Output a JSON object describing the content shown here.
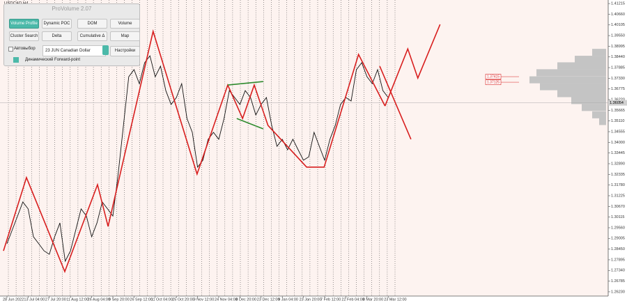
{
  "window": {
    "symbol": "USDCAD,H4",
    "panel": {
      "title": "ProVolume 2.07",
      "buttons": [
        "Volume Profile",
        "Dynamic POC",
        "DOM",
        "Volume",
        "Cluster Search",
        "Delta",
        "Cumulative Δ",
        "Map"
      ],
      "auto_select": "Автовыбор",
      "instrument": "23 JUN Canadian Dollar",
      "settings": "Настройки",
      "forward_point": "Динамический Forward-point"
    }
  },
  "chart_data": {
    "type": "line",
    "categories": [
      "28 Jun 2022",
      null,
      null,
      null,
      "13 Jul 04:00",
      null,
      null,
      null,
      "27 Jul 20:00",
      null,
      null,
      null,
      "11 Aug 12:00",
      null,
      null,
      null,
      "26 Aug 04:00",
      null,
      null,
      null,
      "9 Sep 20:00",
      null,
      null,
      null,
      "26 Sep 12:00",
      null,
      null,
      null,
      "11 Oct 04:00",
      null,
      null,
      null,
      "25 Oct 20:00",
      null,
      null,
      null,
      "9 Nov 12:00",
      null,
      null,
      null,
      "24 Nov 04:00",
      null,
      null,
      null,
      "8 Dec 20:00",
      null,
      null,
      null,
      "23 Dec 12:00",
      null,
      null,
      null,
      "9 Jan 04:00",
      null,
      null,
      null,
      "23 Jan 20:00",
      null,
      null,
      null,
      "7 Feb 12:00",
      null,
      null,
      null,
      "22 Feb 04:00",
      null,
      null,
      null,
      "8 Mar 20:00",
      null,
      null,
      null,
      "23 Mar 12:00"
    ],
    "values": [
      1.2873,
      1.2945,
      1.3017,
      1.309,
      1.3054,
      1.2909,
      1.2873,
      1.2836,
      1.2818,
      1.2909,
      1.2981,
      1.2782,
      1.2836,
      1.2945,
      1.3054,
      1.3017,
      1.2909,
      1.2981,
      1.309,
      1.3054,
      1.3017,
      1.3235,
      1.3488,
      1.3741,
      1.3778,
      1.3705,
      1.3814,
      1.385,
      1.3741,
      1.3796,
      1.3669,
      1.3597,
      1.3633,
      1.3705,
      1.3524,
      1.3452,
      1.3271,
      1.3307,
      1.3416,
      1.3452,
      1.3416,
      1.3524,
      1.3669,
      1.3633,
      1.3597,
      1.3669,
      1.3633,
      1.3542,
      1.3597,
      1.3633,
      1.3488,
      1.3379,
      1.3416,
      1.3361,
      1.3416,
      1.3361,
      1.3307,
      1.3325,
      1.3452,
      1.3379,
      1.3307,
      1.3416,
      1.3488,
      1.3597,
      1.3633,
      1.3615,
      1.3778,
      1.3814,
      1.3741,
      1.3705,
      1.3778,
      1.3669,
      1.3633
    ],
    "color": "#111111",
    "series": [
      {
        "color": "#d81e1e",
        "x": [
          -0.66,
          3.68,
          10.92,
          17.1,
          19.1,
          27.6,
          35.9,
          41.7,
          44.5,
          46.7,
          49.3,
          56.6,
          59.9,
          66.4,
          71.4
        ],
        "values": [
          1.2836,
          1.3217,
          1.2728,
          1.318,
          1.2963,
          1.3977,
          1.3235,
          1.3698,
          1.3524,
          1.3698,
          1.3488,
          1.3271,
          1.3271,
          1.3857,
          1.3589
        ]
      },
      {
        "color": "#d81e1e",
        "x": [
          71.4,
          75.7,
          77.6,
          81.8
        ],
        "values": [
          1.3589,
          1.3886,
          1.3734,
          1.4013
        ]
      },
      {
        "color": "#d81e1e",
        "x": [
          70.4,
          76.3
        ],
        "values": [
          1.3796,
          1.3416
        ]
      },
      {
        "color": "#2e8b2e",
        "x": [
          41.7,
          48.4
        ],
        "values": [
          1.3698,
          1.3716
        ]
      },
      {
        "color": "#2e8b2e",
        "x": [
          43.4,
          48.4
        ],
        "values": [
          1.3524,
          1.347
        ]
      }
    ],
    "ylim": [
      1.2601,
      1.414
    ],
    "yticks": [
      1.41215,
      {
        "value": 1.4066,
        "label": "1.40660"
      },
      1.40105,
      {
        "value": 1.3955,
        "label": "1.39550"
      },
      1.38995,
      {
        "value": 1.3844,
        "label": "1.38440"
      },
      1.37885,
      {
        "value": 1.3733,
        "label": "1.37330"
      },
      1.36775,
      {
        "value": 1.3622,
        "label": "1.36220"
      },
      1.35665,
      {
        "value": 1.3511,
        "label": "1.35110"
      },
      1.34555,
      {
        "value": 1.34,
        "label": "1.34000"
      },
      1.33445,
      {
        "value": 1.3289,
        "label": "1.32890"
      },
      1.32335,
      {
        "value": 1.3178,
        "label": "1.31780"
      },
      1.31225,
      {
        "value": 1.3067,
        "label": "1.30670"
      },
      1.30115,
      {
        "value": 1.2956,
        "label": "1.29560"
      },
      1.29005,
      {
        "value": 1.2845,
        "label": "1.28450"
      },
      1.27895,
      {
        "value": 1.2734,
        "label": "1.27340"
      },
      1.26785,
      {
        "value": 1.2623,
        "label": "1.26230"
      }
    ],
    "current_price": 1.36054,
    "price_labels": [
      1.37415,
      1.37125
    ],
    "profile": {
      "color": "#c4c4c4",
      "xlim": [
        0,
        120
      ],
      "levels": [
        1.3868,
        1.3832,
        1.3798,
        1.3762,
        1.3725,
        1.3689,
        1.3653,
        1.3617,
        1.3581,
        1.3543,
        1.3508
      ],
      "values": [
        20,
        45,
        70,
        100,
        110,
        95,
        70,
        50,
        35,
        20,
        10
      ]
    }
  }
}
